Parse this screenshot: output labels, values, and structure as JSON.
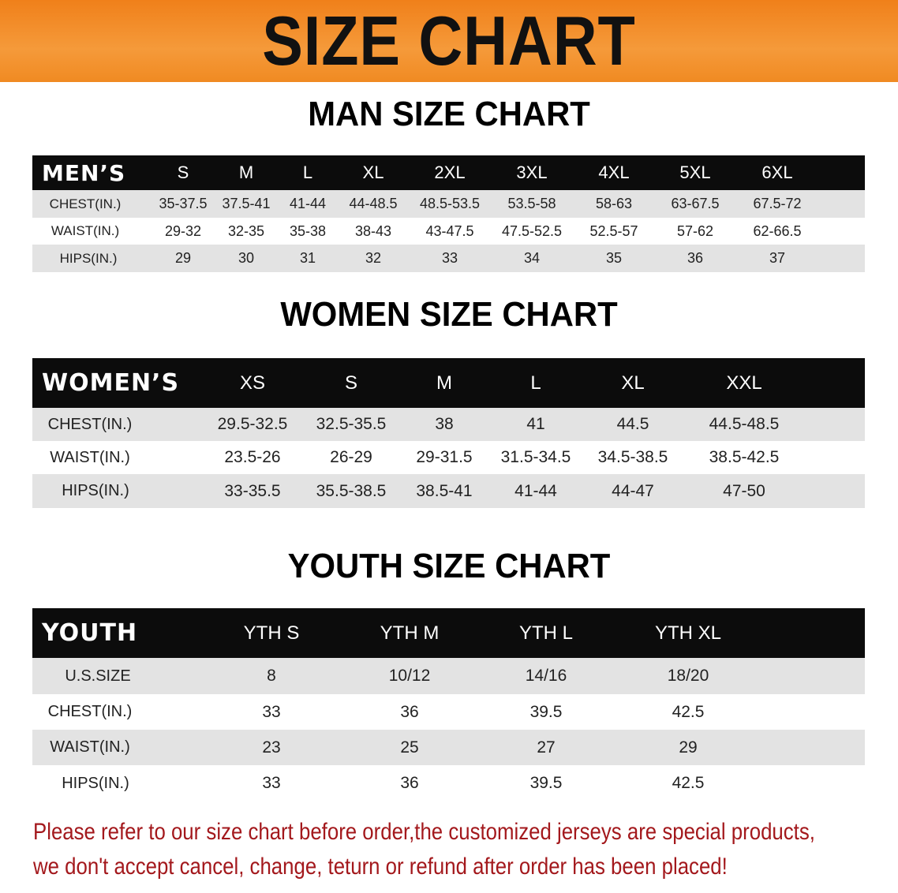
{
  "banner_title": "SIZE CHART",
  "colors": {
    "banner": "#f28a22",
    "header_bg": "#0c0c0c",
    "stripe": "#e3e3e3",
    "note": "#a3181c"
  },
  "tables": [
    {
      "title": "MAN SIZE CHART",
      "header_label": "MEN’S",
      "columns": [
        "S",
        "M",
        "L",
        "XL",
        "2XL",
        "3XL",
        "4XL",
        "5XL",
        "6XL"
      ],
      "rows": [
        {
          "label": "CHEST(IN.)",
          "values": [
            "35-37.5",
            "37.5-41",
            "41-44",
            "44-48.5",
            "48.5-53.5",
            "53.5-58",
            "58-63",
            "63-67.5",
            "67.5-72"
          ]
        },
        {
          "label": "WAIST(IN.)",
          "values": [
            "29-32",
            "32-35",
            "35-38",
            "38-43",
            "43-47.5",
            "47.5-52.5",
            "52.5-57",
            "57-62",
            "62-66.5"
          ]
        },
        {
          "label": "HIPS(IN.)",
          "values": [
            "29",
            "30",
            "31",
            "32",
            "33",
            "34",
            "35",
            "36",
            "37"
          ]
        }
      ]
    },
    {
      "title": "WOMEN SIZE CHART",
      "header_label": "WOMEN’S",
      "columns": [
        "XS",
        "S",
        "M",
        "L",
        "XL",
        "XXL"
      ],
      "rows": [
        {
          "label": "CHEST(IN.)",
          "values": [
            "29.5-32.5",
            "32.5-35.5",
            "38",
            "41",
            "44.5",
            "44.5-48.5"
          ]
        },
        {
          "label": "WAIST(IN.)",
          "values": [
            "23.5-26",
            "26-29",
            "29-31.5",
            "31.5-34.5",
            "34.5-38.5",
            "38.5-42.5"
          ]
        },
        {
          "label": "HIPS(IN.)",
          "values": [
            "33-35.5",
            "35.5-38.5",
            "38.5-41",
            "41-44",
            "44-47",
            "47-50"
          ]
        }
      ]
    },
    {
      "title": "YOUTH SIZE CHART",
      "header_label": "YOUTH",
      "columns": [
        "YTH S",
        "YTH M",
        "YTH L",
        "YTH XL"
      ],
      "rows": [
        {
          "label": "U.S.SIZE",
          "values": [
            "8",
            "10/12",
            "14/16",
            "18/20"
          ]
        },
        {
          "label": "CHEST(IN.)",
          "values": [
            "33",
            "36",
            "39.5",
            "42.5"
          ]
        },
        {
          "label": "WAIST(IN.)",
          "values": [
            "23",
            "25",
            "27",
            "29"
          ]
        },
        {
          "label": "HIPS(IN.)",
          "values": [
            "33",
            "36",
            "39.5",
            "42.5"
          ]
        }
      ]
    }
  ],
  "notice": [
    "Please refer to our size chart before order,the customized jerseys are special products,",
    "we don't accept cancel, change, teturn or refund after order has been placed!"
  ]
}
